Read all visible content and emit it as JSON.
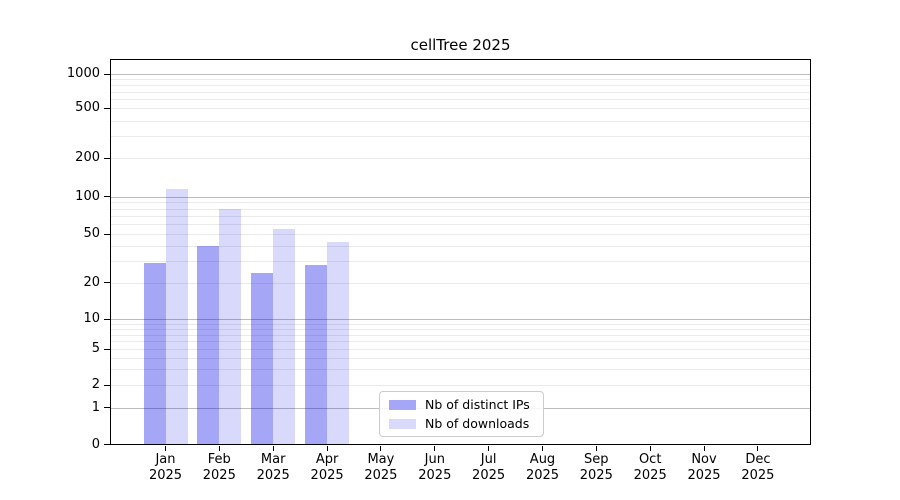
{
  "figure": {
    "background": "#ffffff"
  },
  "chart_data": {
    "type": "bar",
    "title": "cellTree 2025",
    "months": [
      "Jan",
      "Feb",
      "Mar",
      "Apr",
      "May",
      "Jun",
      "Jul",
      "Aug",
      "Sep",
      "Oct",
      "Nov",
      "Dec"
    ],
    "year": "2025",
    "series": [
      {
        "name": "Nb of distinct IPs",
        "fill": "rgba(0,0,232,0.35)",
        "swatch": "#a6a6f7",
        "values": [
          29,
          40,
          24,
          28,
          null,
          null,
          null,
          null,
          null,
          null,
          null,
          null
        ]
      },
      {
        "name": "Nb of downloads",
        "fill": "rgba(0,0,232,0.15)",
        "swatch": "#d9d9fb",
        "values": [
          114,
          79,
          55,
          43,
          null,
          null,
          null,
          null,
          null,
          null,
          null,
          null
        ]
      }
    ],
    "xlabel": "",
    "ylabel": "",
    "yscale": "symlog",
    "yticks": [
      0,
      1,
      2,
      5,
      10,
      20,
      50,
      100,
      200,
      500,
      1000
    ],
    "ylim": [
      0,
      1300
    ],
    "grid": true,
    "grid_major_color": "#bdbdbd",
    "grid_minor_color": "#eaeaea",
    "legend_position": "lower center inside axes",
    "axis_color": "#000000"
  }
}
